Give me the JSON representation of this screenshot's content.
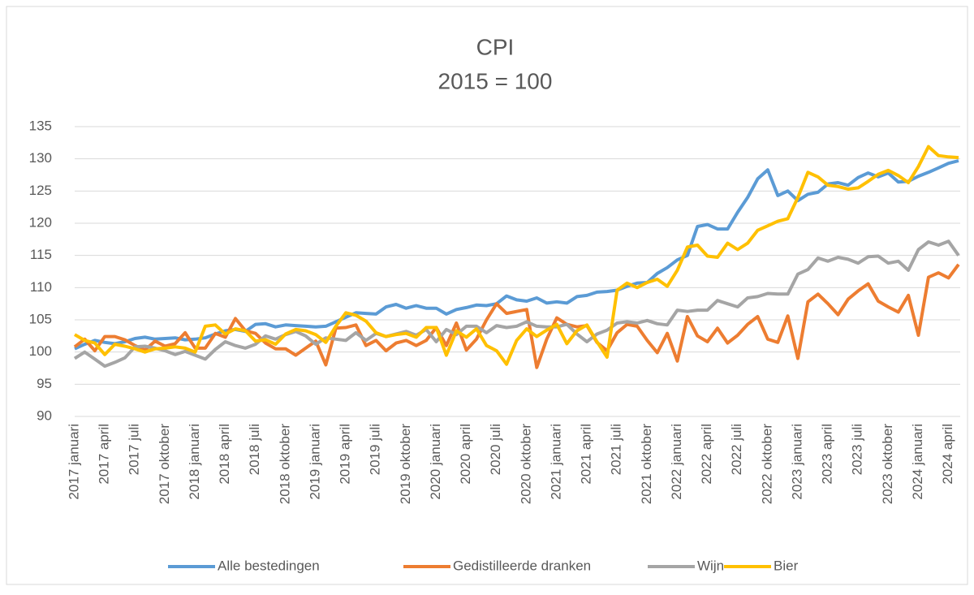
{
  "chart_data": {
    "type": "line",
    "title": "CPI",
    "subtitle": "2015 = 100",
    "categories": [
      "2017 januari",
      null,
      null,
      "2017 april",
      null,
      null,
      "2017 juli",
      null,
      null,
      "2017 oktober",
      null,
      null,
      "2018 januari",
      null,
      null,
      "2018 april",
      null,
      null,
      "2018 juli",
      null,
      null,
      "2018 oktober",
      null,
      null,
      "2019 januari",
      null,
      null,
      "2019 april",
      null,
      null,
      "2019 juli",
      null,
      null,
      "2019 oktober",
      null,
      null,
      "2020 januari",
      null,
      null,
      "2020 april",
      null,
      null,
      "2020 juli",
      null,
      null,
      "2020 oktober",
      null,
      null,
      "2021 januari",
      null,
      null,
      "2021 april",
      null,
      null,
      "2021 juli",
      null,
      null,
      "2021 oktober",
      null,
      null,
      "2022 januari",
      null,
      null,
      "2022 april",
      null,
      null,
      "2022 juli",
      null,
      null,
      "2022 oktober",
      null,
      null,
      "2023 januari",
      null,
      null,
      "2023 april",
      null,
      null,
      "2023 juli",
      null,
      null,
      "2023 oktober",
      null,
      null,
      "2024 januari",
      null,
      null,
      "2024 april",
      null
    ],
    "series": [
      {
        "name": "Alle bestedingen",
        "color": "#5b9bd5",
        "values": [
          100.5,
          101.2,
          101.8,
          101.5,
          101.3,
          101.6,
          102.1,
          102.3,
          102.0,
          102.1,
          102.2,
          101.9,
          102.0,
          102.2,
          102.8,
          103.3,
          103.5,
          103.2,
          104.3,
          104.4,
          103.9,
          104.2,
          104.1,
          104.0,
          103.9,
          104.0,
          104.7,
          105.4,
          106.1,
          106.0,
          105.9,
          107.0,
          107.4,
          106.8,
          107.2,
          106.8,
          106.8,
          105.9,
          106.6,
          106.9,
          107.3,
          107.2,
          107.5,
          108.7,
          108.1,
          107.9,
          108.4,
          107.6,
          107.8,
          107.6,
          108.6,
          108.8,
          109.3,
          109.4,
          109.6,
          110.2,
          110.7,
          110.8,
          112.2,
          113.1,
          114.3,
          115.0,
          119.5,
          119.8,
          119.1,
          119.1,
          121.7,
          124.0,
          126.9,
          128.3,
          124.3,
          125.0,
          123.5,
          124.5,
          124.8,
          126.1,
          126.3,
          125.9,
          127.1,
          127.8,
          127.2,
          127.8,
          126.4,
          126.5,
          127.3,
          127.9,
          128.6,
          129.3,
          129.7
        ]
      },
      {
        "name": "Gedistilleerde dranken",
        "color": "#ed7d31",
        "values": [
          100.8,
          102.0,
          100.2,
          102.4,
          102.4,
          101.9,
          101.0,
          100.3,
          101.7,
          100.9,
          101.3,
          103.0,
          100.6,
          100.6,
          102.9,
          102.3,
          105.2,
          103.3,
          102.9,
          101.4,
          100.5,
          100.5,
          99.5,
          100.6,
          101.7,
          98.0,
          103.7,
          103.8,
          104.2,
          101.0,
          101.8,
          100.2,
          101.4,
          101.8,
          101.0,
          101.8,
          103.8,
          101.0,
          104.5,
          100.3,
          102.0,
          105.0,
          107.5,
          106.0,
          106.3,
          106.6,
          97.6,
          102.0,
          105.3,
          104.3,
          103.9,
          104.1,
          101.5,
          100.2,
          103.0,
          104.3,
          104.0,
          101.8,
          99.9,
          102.9,
          98.6,
          105.5,
          102.5,
          101.6,
          103.7,
          101.4,
          102.6,
          104.3,
          105.5,
          102.0,
          101.5,
          105.6,
          99.0,
          107.8,
          109.0,
          107.5,
          105.8,
          108.2,
          109.5,
          110.6,
          107.9,
          107.0,
          106.2,
          108.8,
          102.6,
          111.6,
          112.3,
          111.5,
          113.6
        ]
      },
      {
        "name": "Wijn",
        "color": "#a5a5a5",
        "values": [
          99.0,
          100.0,
          98.9,
          97.8,
          98.4,
          99.1,
          100.8,
          100.9,
          100.6,
          100.2,
          99.6,
          100.1,
          99.5,
          98.9,
          100.4,
          101.6,
          101.0,
          100.6,
          101.2,
          102.5,
          102.0,
          102.7,
          103.2,
          102.5,
          101.2,
          102.2,
          102.0,
          101.8,
          103.0,
          101.8,
          102.9,
          102.4,
          102.8,
          103.2,
          102.6,
          103.5,
          101.6,
          103.5,
          102.7,
          104.0,
          104.0,
          103.0,
          104.1,
          103.8,
          104.0,
          104.7,
          104.0,
          103.9,
          103.9,
          104.3,
          102.8,
          101.6,
          102.8,
          103.4,
          104.5,
          104.7,
          104.5,
          104.9,
          104.4,
          104.2,
          106.5,
          106.3,
          106.5,
          106.5,
          108.0,
          107.5,
          107.0,
          108.4,
          108.6,
          109.1,
          109.0,
          109.0,
          112.1,
          112.8,
          114.6,
          114.1,
          114.7,
          114.4,
          113.8,
          114.8,
          114.9,
          113.8,
          114.1,
          112.7,
          115.9,
          117.1,
          116.6,
          117.2,
          115.0
        ]
      },
      {
        "name": "Bier",
        "color": "#ffc000",
        "values": [
          102.7,
          101.8,
          101.4,
          99.6,
          101.2,
          100.9,
          100.5,
          100.0,
          100.5,
          100.6,
          100.8,
          100.6,
          100.0,
          104.0,
          104.2,
          102.8,
          103.6,
          103.3,
          101.7,
          101.9,
          101.2,
          102.8,
          103.5,
          103.3,
          102.7,
          101.5,
          104.0,
          106.1,
          105.7,
          104.8,
          103.0,
          102.4,
          102.7,
          102.9,
          102.3,
          103.8,
          103.8,
          99.5,
          103.3,
          102.3,
          103.6,
          101.0,
          100.2,
          98.1,
          101.8,
          103.6,
          102.4,
          103.4,
          104.3,
          101.3,
          103.3,
          104.2,
          101.6,
          99.2,
          109.6,
          110.7,
          110.0,
          110.8,
          111.3,
          110.2,
          112.7,
          116.3,
          116.6,
          114.9,
          114.7,
          116.9,
          115.9,
          116.9,
          118.9,
          119.6,
          120.3,
          120.7,
          124.0,
          127.9,
          127.2,
          125.9,
          125.7,
          125.3,
          125.5,
          126.5,
          127.6,
          128.2,
          127.4,
          126.3,
          128.8,
          131.9,
          130.5,
          130.3,
          130.2
        ]
      }
    ],
    "ylim": [
      90,
      135
    ],
    "yticks": [
      90,
      95,
      100,
      105,
      110,
      115,
      120,
      125,
      130,
      135
    ],
    "grid": true,
    "legend": "bottom"
  }
}
